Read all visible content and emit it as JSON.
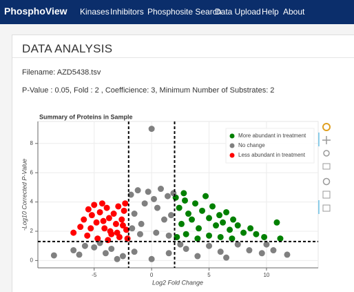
{
  "header": {
    "brand": "PhosphoView",
    "nav": [
      "Kinases",
      "Inhibitors",
      "Phosphosite Search",
      "Data Upload",
      "Help",
      "About"
    ]
  },
  "page": {
    "title": "DATA ANALYSIS",
    "filename": "Filename: AZD5438.tsv",
    "parameters": "P-Value : 0.05, Fold : 2 , Coefficience: 3, Minimum Number of Substrates: 2"
  },
  "chart_data": {
    "type": "scatter",
    "title": "Summary of Proteins in Sample",
    "xlabel": "Log2 Fold Change",
    "ylabel": "-Log10 Corrected P-Value",
    "xlim": [
      -9.9,
      14.5
    ],
    "ylim": [
      -0.5,
      9.5
    ],
    "xticks": [
      -5,
      0,
      5,
      10
    ],
    "yticks": [
      0,
      2,
      4,
      6,
      8
    ],
    "grid": true,
    "legend": "top-right",
    "threshold_lines": {
      "x": [
        -2,
        2
      ],
      "y": [
        1.3
      ]
    },
    "series": [
      {
        "name": "More abundant in treatment",
        "color": "#008000",
        "x": [
          2.1,
          2.4,
          2.6,
          2.9,
          3.2,
          3.5,
          3.8,
          4.1,
          4.4,
          4.7,
          5,
          5.3,
          5.6,
          5.9,
          6.2,
          6.5,
          6.8,
          7.1,
          7.5,
          8,
          8.6,
          9.1,
          9.8,
          10.9,
          11.2,
          2.2,
          3,
          4,
          5,
          6,
          7,
          2.8
        ],
        "values": [
          4.3,
          3.6,
          2.5,
          4.1,
          3.2,
          2.8,
          3.9,
          2.2,
          3.4,
          4.4,
          2.9,
          3.7,
          2.4,
          3.1,
          2.6,
          3.3,
          2.1,
          2.8,
          2.4,
          1.9,
          2.2,
          1.8,
          1.6,
          2.6,
          1.5,
          1.6,
          1.8,
          1.5,
          1.7,
          1.6,
          1.5,
          4.6
        ]
      },
      {
        "name": "No change",
        "color": "#808080",
        "x": [
          -1.8,
          -1.5,
          -1.2,
          -0.9,
          -0.6,
          -0.3,
          0,
          0.2,
          0.5,
          0.8,
          1.1,
          1.4,
          1.7,
          1.9,
          -1,
          0.4,
          1.5,
          -1.7,
          -8.5,
          -6.3,
          -5.8,
          -5,
          -4,
          -3.5,
          -2.5,
          -1.5,
          0,
          1.5,
          3,
          4,
          5,
          6,
          7.5,
          8.5,
          9.6,
          10.6,
          11.8,
          10,
          -6.8,
          -4.5,
          6.5,
          2.5,
          -3
        ],
        "values": [
          4.5,
          3.2,
          4.8,
          2.5,
          3.9,
          4.7,
          9,
          4.2,
          3.6,
          4.9,
          2.8,
          4.4,
          3.1,
          4.6,
          1.8,
          1.9,
          1.7,
          2.2,
          0.35,
          0.4,
          1,
          0.9,
          0.5,
          0.8,
          0.3,
          0.6,
          0.1,
          0.5,
          0.8,
          0.3,
          1,
          0.6,
          1.1,
          0.7,
          0.5,
          0.7,
          0.4,
          1.1,
          0.7,
          1.2,
          0.2,
          1.1,
          0.1
        ]
      },
      {
        "name": "Less abundant in treatment",
        "color": "#ff0000",
        "x": [
          -6.8,
          -6.2,
          -5.9,
          -5.5,
          -5.2,
          -5,
          -4.8,
          -4.5,
          -4.3,
          -4.1,
          -3.9,
          -3.7,
          -3.5,
          -3.3,
          -3.1,
          -2.9,
          -2.8,
          -2.6,
          -2.4,
          -2.2,
          -2.1,
          -5.6,
          -4.7,
          -3.8,
          -3,
          -2.5,
          -4.2,
          -5.3,
          -3.6,
          -2.3
        ],
        "values": [
          1.9,
          2.3,
          2.8,
          3.5,
          3.1,
          3.8,
          2.6,
          3.3,
          3.9,
          2.2,
          3.6,
          2.9,
          1.8,
          3.2,
          2.5,
          3.7,
          1.6,
          2.8,
          3.4,
          2.1,
          1.5,
          1.7,
          1.5,
          1.4,
          1.9,
          2.4,
          2.7,
          2.2,
          2,
          3.9
        ]
      }
    ]
  }
}
